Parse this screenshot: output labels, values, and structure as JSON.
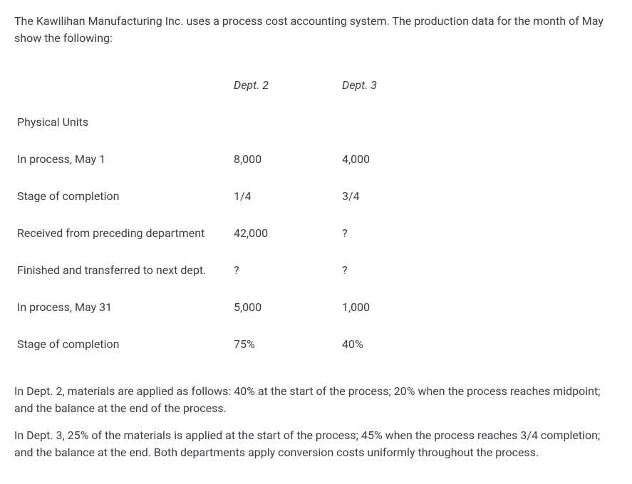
{
  "intro": "The Kawilihan Manufacturing Inc. uses a process cost accounting system.  The production data for the month of May show the following:",
  "headers": {
    "dept2": "Dept. 2",
    "dept3": "Dept. 3"
  },
  "rows": [
    {
      "label": "Physical Units",
      "dept2": "",
      "dept3": ""
    },
    {
      "label": "In process, May 1",
      "dept2": "8,000",
      "dept3": "4,000"
    },
    {
      "label": "Stage of completion",
      "dept2": "1/4",
      "dept3": "3/4"
    },
    {
      "label": "Received from preceding department",
      "dept2": "42,000",
      "dept3": "?"
    },
    {
      "label": "Finished and transferred to next dept.",
      "dept2": "?",
      "dept3": "?"
    },
    {
      "label": "In process, May 31",
      "dept2": "5,000",
      "dept3": "1,000"
    },
    {
      "label": "Stage of completion",
      "dept2": "75%",
      "dept3": "40%"
    }
  ],
  "para1": "In Dept. 2, materials are applied as follows: 40% at the start of the process; 20% when the process reaches midpoint; and the balance at the end of the process.",
  "para2": "In Dept. 3, 25% of the materials is applied at the start of the process; 45% when the process reaches 3/4 completion; and the balance at the end.  Both departments apply conversion costs uniformly throughout the process."
}
